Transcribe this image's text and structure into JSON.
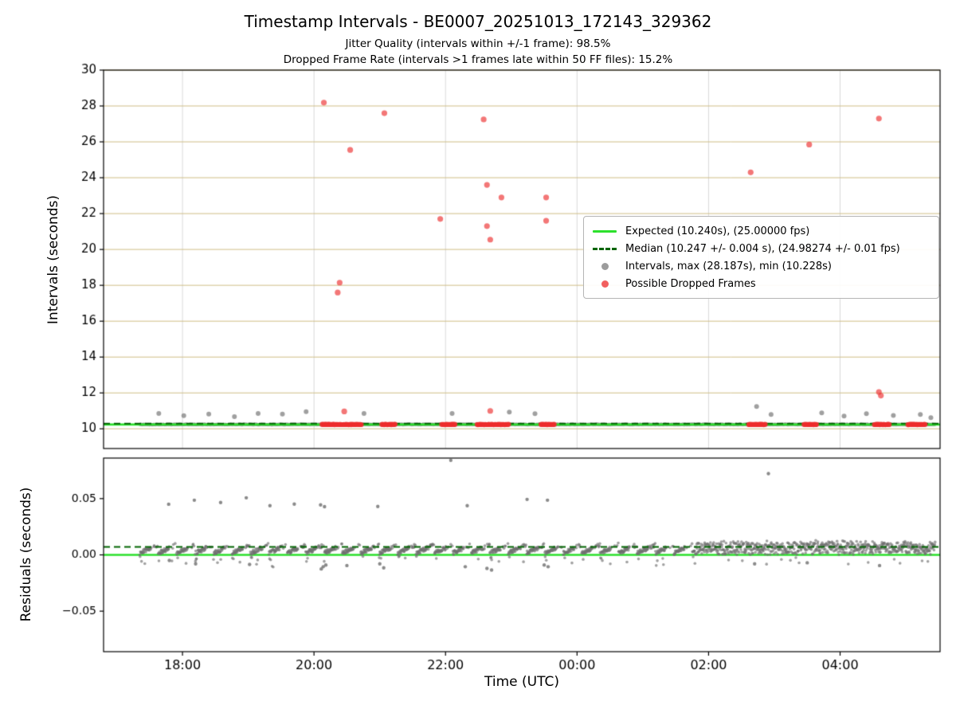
{
  "figure": {
    "title": "Timestamp Intervals - BE0007_20251013_172143_329362",
    "subtitle1": "Jitter Quality (intervals within +/-1 frame): 98.5%",
    "subtitle2": "Dropped Frame Rate (intervals >1 frames late within 50 FF files): 15.2%"
  },
  "chart_data": {
    "type": "scatter",
    "x": {
      "label": "Time (UTC)",
      "domain_hours": [
        16.8,
        29.52
      ],
      "ticks": [
        {
          "h": 18,
          "label": "18:00"
        },
        {
          "h": 20,
          "label": "20:00"
        },
        {
          "h": 22,
          "label": "22:00"
        },
        {
          "h": 24,
          "label": "00:00"
        },
        {
          "h": 26,
          "label": "02:00"
        },
        {
          "h": 28,
          "label": "04:00"
        }
      ]
    },
    "top_panel": {
      "ylabel": "Intervals (seconds)",
      "ylim": [
        8.9,
        30
      ],
      "yticks": [
        10,
        12,
        14,
        16,
        18,
        20,
        22,
        24,
        26,
        28,
        30
      ],
      "expected_interval_s": 10.24,
      "expected_fps": 25.0,
      "median_interval_s": 10.247,
      "median_interval_err_s": 0.004,
      "median_fps": 24.98274,
      "median_fps_err": 0.01,
      "max_interval_s": 28.187,
      "min_interval_s": 10.228,
      "baseline_band": {
        "start_h": 17.35,
        "end_h": 29.45,
        "value": 10.24,
        "jitter": 0.02,
        "step_h": 0.008
      },
      "gray_points": [
        [
          17.64,
          10.85
        ],
        [
          18.02,
          10.73
        ],
        [
          18.4,
          10.82
        ],
        [
          18.79,
          10.68
        ],
        [
          19.15,
          10.86
        ],
        [
          19.52,
          10.82
        ],
        [
          19.88,
          10.95
        ],
        [
          20.76,
          10.86
        ],
        [
          22.1,
          10.86
        ],
        [
          22.97,
          10.93
        ],
        [
          23.36,
          10.84
        ],
        [
          26.73,
          11.24
        ],
        [
          26.95,
          10.8
        ],
        [
          27.72,
          10.89
        ],
        [
          28.06,
          10.71
        ],
        [
          28.4,
          10.84
        ],
        [
          28.81,
          10.74
        ],
        [
          29.22,
          10.8
        ],
        [
          29.38,
          10.62
        ]
      ],
      "red_points": [
        [
          20.15,
          28.187
        ],
        [
          20.55,
          25.55
        ],
        [
          21.07,
          27.6
        ],
        [
          20.39,
          18.15
        ],
        [
          20.36,
          17.6
        ],
        [
          20.46,
          10.97
        ],
        [
          21.92,
          21.7
        ],
        [
          22.58,
          27.25
        ],
        [
          22.63,
          23.6
        ],
        [
          22.63,
          21.3
        ],
        [
          22.68,
          20.55
        ],
        [
          22.68,
          11.0
        ],
        [
          22.85,
          22.9
        ],
        [
          23.53,
          22.9
        ],
        [
          23.53,
          21.6
        ],
        [
          26.64,
          24.3
        ],
        [
          27.53,
          25.85
        ],
        [
          28.59,
          27.3
        ],
        [
          28.59,
          12.05
        ],
        [
          28.62,
          11.85
        ]
      ],
      "red_baseline_segments_h": [
        [
          20.12,
          20.73
        ],
        [
          21.03,
          21.24
        ],
        [
          21.94,
          22.15
        ],
        [
          22.48,
          22.97
        ],
        [
          23.45,
          23.66
        ],
        [
          26.61,
          26.87
        ],
        [
          27.45,
          27.65
        ],
        [
          28.52,
          28.76
        ],
        [
          29.03,
          29.3
        ]
      ],
      "legend": [
        {
          "sample": "solid-line",
          "color": "#2ce02c",
          "label": "Expected (10.240s), (25.00000 fps)"
        },
        {
          "sample": "dashed-line",
          "color": "#006400",
          "label": "Median (10.247 +/- 0.004 s), (24.98274 +/- 0.01 fps)"
        },
        {
          "sample": "dot",
          "color": "#9c9c9c",
          "label": "Intervals, max (28.187s), min (10.228s)"
        },
        {
          "sample": "dot",
          "color": "#f15f5f",
          "label": "Possible Dropped Frames"
        }
      ]
    },
    "bottom_panel": {
      "ylabel": "Residuals (seconds)",
      "ylim": [
        -0.086,
        0.086
      ],
      "yticks": [
        {
          "v": -0.05,
          "label": "−0.05"
        },
        {
          "v": 0.0,
          "label": "0.00"
        },
        {
          "v": 0.05,
          "label": "0.05"
        }
      ],
      "expected_residual": 0.0,
      "median_residual": 0.007,
      "band": {
        "start_h": 17.35,
        "end_h": 29.45,
        "step_h": 0.0055,
        "cluster_period_h": 0.28,
        "dense_after_h": 25.8
      },
      "outlier_points": [
        [
          17.79,
          0.045
        ],
        [
          18.18,
          0.0486
        ],
        [
          18.58,
          0.0465
        ],
        [
          18.97,
          0.0507
        ],
        [
          19.33,
          0.0437
        ],
        [
          19.7,
          0.0451
        ],
        [
          20.1,
          0.0444
        ],
        [
          20.16,
          0.0428
        ],
        [
          20.97,
          0.043
        ],
        [
          22.08,
          0.084
        ],
        [
          22.33,
          0.0437
        ],
        [
          23.24,
          0.0493
        ],
        [
          23.55,
          0.0486
        ],
        [
          26.91,
          0.0722
        ],
        [
          17.8,
          -0.005
        ],
        [
          18.2,
          -0.008
        ],
        [
          19.02,
          -0.0085
        ],
        [
          20.11,
          -0.0125
        ],
        [
          20.14,
          -0.0105
        ],
        [
          20.18,
          -0.009
        ],
        [
          20.5,
          -0.0095
        ],
        [
          21.0,
          -0.008
        ],
        [
          21.06,
          -0.0115
        ],
        [
          22.3,
          -0.0105
        ],
        [
          22.63,
          -0.012
        ],
        [
          22.7,
          -0.0135
        ],
        [
          23.5,
          -0.009
        ],
        [
          23.56,
          -0.0105
        ],
        [
          26.7,
          -0.008
        ],
        [
          27.5,
          -0.007
        ],
        [
          28.6,
          -0.0095
        ]
      ]
    },
    "colors": {
      "expected_line": "#2ce02c",
      "median_line": "#006400",
      "interval_dots": "#9c9c9c",
      "dropped_dots": "#f15f5f",
      "grid_horizontal": "#cfbd85",
      "grid_vertical": "#d9d9d9",
      "axes": "#000000"
    }
  }
}
